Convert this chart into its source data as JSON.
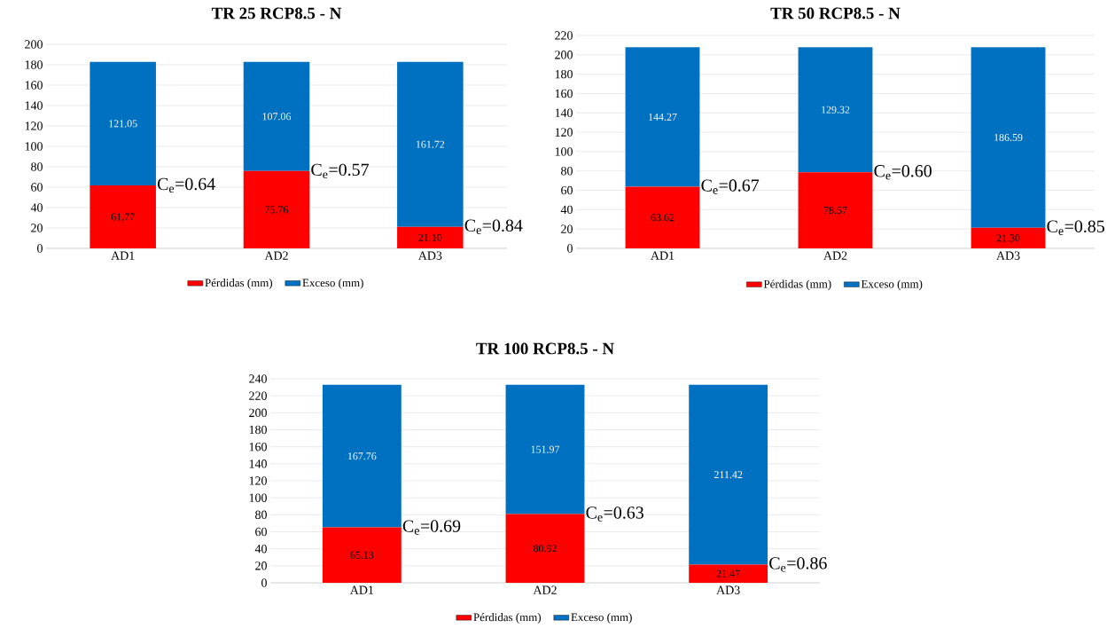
{
  "chart_data": [
    {
      "type": "bar",
      "title": "TR 25 RCP8.5 - N",
      "categories": [
        "AD1",
        "AD2",
        "AD3"
      ],
      "stacked": true,
      "series": [
        {
          "name": "Pérdidas (mm)",
          "color": "#ff0000",
          "values": [
            61.77,
            75.76,
            21.1
          ],
          "value_labels": [
            "61.77",
            "75.76",
            "21.10"
          ]
        },
        {
          "name": "Exceso (mm)",
          "color": "#0070c0",
          "values": [
            121.05,
            107.06,
            161.72
          ],
          "value_labels": [
            "121.05",
            "107.06",
            "161.72"
          ]
        }
      ],
      "ylim": [
        0,
        200
      ],
      "yticks": [
        0,
        20,
        40,
        60,
        80,
        100,
        120,
        140,
        160,
        180,
        200
      ],
      "grid": "y",
      "legend": "bottom",
      "annotations": [
        {
          "text": "C$_{e}$=0.64",
          "x": "AD1",
          "y": 61.77
        },
        {
          "text": "C$_{e}$=0.57",
          "x": "AD2",
          "y": 75.76
        },
        {
          "text": "C$_{e}$=0.84",
          "x": "AD3",
          "y": 21.1
        }
      ]
    },
    {
      "type": "bar",
      "title": "TR 50 RCP8.5 - N",
      "categories": [
        "AD1",
        "AD2",
        "AD3"
      ],
      "stacked": true,
      "series": [
        {
          "name": "Pérdidas (mm)",
          "color": "#ff0000",
          "values": [
            63.62,
            78.57,
            21.3
          ],
          "value_labels": [
            "63.62",
            "78.57",
            "21.30"
          ]
        },
        {
          "name": "Exceso (mm)",
          "color": "#0070c0",
          "values": [
            144.27,
            129.32,
            186.59
          ],
          "value_labels": [
            "144.27",
            "129.32",
            "186.59"
          ]
        }
      ],
      "ylim": [
        0,
        220
      ],
      "yticks": [
        0,
        20,
        40,
        60,
        80,
        100,
        120,
        140,
        160,
        180,
        200,
        220
      ],
      "grid": "y",
      "legend": "bottom",
      "annotations": [
        {
          "text": "C$_{e}$=0.67",
          "x": "AD1",
          "y": 63.62
        },
        {
          "text": "C$_{e}$=0.60",
          "x": "AD2",
          "y": 78.57
        },
        {
          "text": "C$_{e}$=0.85",
          "x": "AD3",
          "y": 21.3
        }
      ]
    },
    {
      "type": "bar",
      "title": "TR 100 RCP8.5 - N",
      "categories": [
        "AD1",
        "AD2",
        "AD3"
      ],
      "stacked": true,
      "series": [
        {
          "name": "Pérdidas (mm)",
          "color": "#ff0000",
          "values": [
            65.13,
            80.92,
            21.47
          ],
          "value_labels": [
            "65.13",
            "80.92",
            "21.47"
          ]
        },
        {
          "name": "Exceso (mm)",
          "color": "#0070c0",
          "values": [
            167.76,
            151.97,
            211.42
          ],
          "value_labels": [
            "167.76",
            "151.97",
            "211.42"
          ]
        }
      ],
      "ylim": [
        0,
        240
      ],
      "yticks": [
        0,
        20,
        40,
        60,
        80,
        100,
        120,
        140,
        160,
        180,
        200,
        220,
        240
      ],
      "grid": "y",
      "legend": "bottom",
      "annotations": [
        {
          "text": "C$_{e}$=0.69",
          "x": "AD1",
          "y": 65.13
        },
        {
          "text": "C$_{e}$=0.63",
          "x": "AD2",
          "y": 80.92
        },
        {
          "text": "C$_{e}$=0.86",
          "x": "AD3",
          "y": 21.47
        }
      ]
    }
  ]
}
